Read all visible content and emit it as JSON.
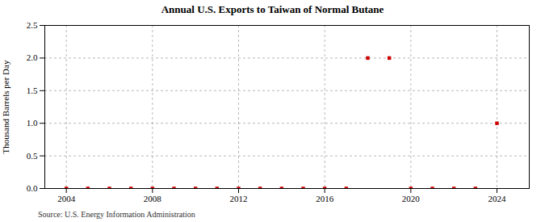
{
  "chart_data": {
    "type": "scatter",
    "title": "Annual U.S. Exports to Taiwan of Normal Butane",
    "ylabel": "Thousand Barrels per Day",
    "source": "Source: U.S. Energy Information Administration",
    "x": [
      2004,
      2005,
      2006,
      2007,
      2008,
      2009,
      2010,
      2011,
      2012,
      2013,
      2014,
      2015,
      2016,
      2017,
      2018,
      2019,
      2020,
      2021,
      2022,
      2023,
      2024
    ],
    "values": [
      0.0,
      0.0,
      0.0,
      0.0,
      0.0,
      0.0,
      0.0,
      0.0,
      0.0,
      0.0,
      0.0,
      0.0,
      0.0,
      0.0,
      2.0,
      2.0,
      0.0,
      0.0,
      0.0,
      0.0,
      1.0
    ],
    "color": "#cc0000",
    "marker": "square",
    "xlim": [
      2003,
      2025.5
    ],
    "ylim": [
      0,
      2.5
    ],
    "xticks": [
      2004,
      2008,
      2012,
      2016,
      2020,
      2024
    ],
    "yticks": [
      {
        "value": 0,
        "label": "0.0"
      },
      0.5,
      {
        "value": 1,
        "label": "1.0"
      },
      1.5,
      {
        "value": 2,
        "label": "2.0"
      },
      2.5
    ],
    "grid": true
  }
}
